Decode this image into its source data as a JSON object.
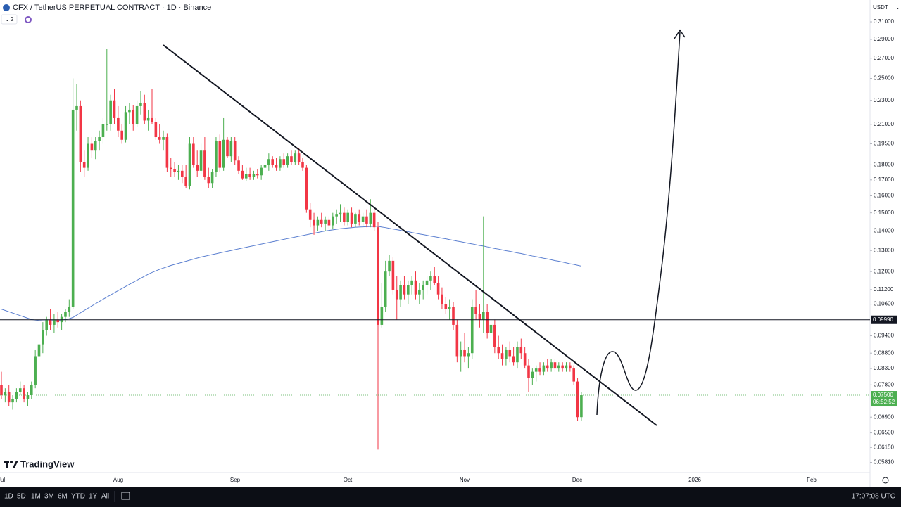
{
  "header": {
    "symbol": "CFX / TetherUS PERPETUAL CONTRACT · 1D · Binance",
    "indicator_count": "2",
    "currency": "USDT"
  },
  "chart_data": {
    "type": "candlestick",
    "log_scale": true,
    "up_color": "#4caf50",
    "down_color": "#f23645",
    "ylim": [
      0.0559,
      0.3368
    ],
    "yticks": [
      {
        "value": 0.31,
        "label": "0.31000"
      },
      {
        "value": 0.29,
        "label": "0.29000"
      },
      {
        "value": 0.27,
        "label": "0.27000"
      },
      {
        "value": 0.25,
        "label": "0.25000"
      },
      {
        "value": 0.23,
        "label": "0.23000"
      },
      {
        "value": 0.21,
        "label": "0.21000"
      },
      {
        "value": 0.195,
        "label": "0.19500"
      },
      {
        "value": 0.18,
        "label": "0.18000"
      },
      {
        "value": 0.17,
        "label": "0.17000"
      },
      {
        "value": 0.16,
        "label": "0.16000"
      },
      {
        "value": 0.15,
        "label": "0.15000"
      },
      {
        "value": 0.14,
        "label": "0.14000"
      },
      {
        "value": 0.13,
        "label": "0.13000"
      },
      {
        "value": 0.12,
        "label": "0.12000"
      },
      {
        "value": 0.112,
        "label": "0.11200"
      },
      {
        "value": 0.106,
        "label": "0.10600"
      },
      {
        "value": 0.094,
        "label": "0.09400"
      },
      {
        "value": 0.088,
        "label": "0.08800"
      },
      {
        "value": 0.083,
        "label": "0.08300"
      },
      {
        "value": 0.078,
        "label": "0.07800"
      },
      {
        "value": 0.069,
        "label": "0.06900"
      },
      {
        "value": 0.065,
        "label": "0.06500"
      },
      {
        "value": 0.0615,
        "label": "0.06150"
      },
      {
        "value": 0.0581,
        "label": "0.05810"
      }
    ],
    "x_labels": [
      "Jul",
      "Aug",
      "Sep",
      "Oct",
      "Nov",
      "Dec",
      "2026",
      "Feb"
    ],
    "hline": {
      "value": 0.0999,
      "label": "0.09990"
    },
    "last": {
      "value": 0.075,
      "label": "0.07500",
      "countdown": "06:52:52"
    },
    "ohlc": [
      [
        0.078,
        0.082,
        0.074,
        0.075
      ],
      [
        0.075,
        0.077,
        0.073,
        0.076
      ],
      [
        0.076,
        0.078,
        0.072,
        0.073
      ],
      [
        0.073,
        0.075,
        0.071,
        0.074
      ],
      [
        0.074,
        0.077,
        0.073,
        0.076
      ],
      [
        0.076,
        0.079,
        0.075,
        0.077
      ],
      [
        0.077,
        0.078,
        0.073,
        0.074
      ],
      [
        0.074,
        0.076,
        0.072,
        0.075
      ],
      [
        0.075,
        0.079,
        0.074,
        0.078
      ],
      [
        0.078,
        0.089,
        0.077,
        0.087
      ],
      [
        0.087,
        0.093,
        0.085,
        0.091
      ],
      [
        0.091,
        0.099,
        0.088,
        0.096
      ],
      [
        0.096,
        0.101,
        0.094,
        0.1
      ],
      [
        0.1,
        0.104,
        0.096,
        0.098
      ],
      [
        0.098,
        0.102,
        0.095,
        0.1
      ],
      [
        0.1,
        0.103,
        0.097,
        0.099
      ],
      [
        0.099,
        0.102,
        0.096,
        0.101
      ],
      [
        0.101,
        0.104,
        0.099,
        0.103
      ],
      [
        0.103,
        0.108,
        0.101,
        0.105
      ],
      [
        0.105,
        0.25,
        0.104,
        0.222
      ],
      [
        0.222,
        0.245,
        0.205,
        0.225
      ],
      [
        0.225,
        0.23,
        0.175,
        0.182
      ],
      [
        0.182,
        0.19,
        0.172,
        0.178
      ],
      [
        0.178,
        0.2,
        0.176,
        0.195
      ],
      [
        0.195,
        0.2,
        0.185,
        0.19
      ],
      [
        0.19,
        0.2,
        0.184,
        0.197
      ],
      [
        0.197,
        0.205,
        0.19,
        0.2
      ],
      [
        0.2,
        0.215,
        0.195,
        0.21
      ],
      [
        0.21,
        0.28,
        0.205,
        0.21
      ],
      [
        0.21,
        0.235,
        0.205,
        0.23
      ],
      [
        0.23,
        0.24,
        0.21,
        0.215
      ],
      [
        0.215,
        0.225,
        0.2,
        0.205
      ],
      [
        0.205,
        0.21,
        0.195,
        0.198
      ],
      [
        0.198,
        0.225,
        0.196,
        0.22
      ],
      [
        0.22,
        0.228,
        0.21,
        0.222
      ],
      [
        0.222,
        0.226,
        0.205,
        0.21
      ],
      [
        0.21,
        0.23,
        0.208,
        0.225
      ],
      [
        0.225,
        0.238,
        0.218,
        0.228
      ],
      [
        0.228,
        0.235,
        0.21,
        0.213
      ],
      [
        0.213,
        0.222,
        0.205,
        0.215
      ],
      [
        0.215,
        0.24,
        0.21,
        0.212
      ],
      [
        0.212,
        0.215,
        0.198,
        0.2
      ],
      [
        0.2,
        0.21,
        0.195,
        0.198
      ],
      [
        0.198,
        0.205,
        0.19,
        0.2
      ],
      [
        0.2,
        0.203,
        0.175,
        0.178
      ],
      [
        0.178,
        0.185,
        0.172,
        0.177
      ],
      [
        0.177,
        0.182,
        0.172,
        0.175
      ],
      [
        0.175,
        0.18,
        0.17,
        0.176
      ],
      [
        0.176,
        0.18,
        0.168,
        0.172
      ],
      [
        0.172,
        0.18,
        0.165,
        0.166
      ],
      [
        0.166,
        0.2,
        0.164,
        0.195
      ],
      [
        0.195,
        0.2,
        0.178,
        0.18
      ],
      [
        0.18,
        0.19,
        0.172,
        0.176
      ],
      [
        0.176,
        0.195,
        0.174,
        0.19
      ],
      [
        0.19,
        0.2,
        0.17,
        0.172
      ],
      [
        0.172,
        0.178,
        0.165,
        0.168
      ],
      [
        0.168,
        0.177,
        0.165,
        0.175
      ],
      [
        0.175,
        0.2,
        0.172,
        0.197
      ],
      [
        0.197,
        0.202,
        0.175,
        0.178
      ],
      [
        0.178,
        0.215,
        0.176,
        0.198
      ],
      [
        0.198,
        0.2,
        0.185,
        0.186
      ],
      [
        0.186,
        0.2,
        0.182,
        0.197
      ],
      [
        0.197,
        0.2,
        0.18,
        0.183
      ],
      [
        0.183,
        0.186,
        0.174,
        0.176
      ],
      [
        0.176,
        0.18,
        0.17,
        0.171
      ],
      [
        0.171,
        0.178,
        0.169,
        0.174
      ],
      [
        0.174,
        0.178,
        0.17,
        0.172
      ],
      [
        0.172,
        0.176,
        0.17,
        0.174
      ],
      [
        0.174,
        0.177,
        0.171,
        0.173
      ],
      [
        0.173,
        0.18,
        0.17,
        0.178
      ],
      [
        0.178,
        0.182,
        0.175,
        0.18
      ],
      [
        0.18,
        0.188,
        0.176,
        0.184
      ],
      [
        0.184,
        0.186,
        0.178,
        0.18
      ],
      [
        0.18,
        0.185,
        0.176,
        0.178
      ],
      [
        0.178,
        0.186,
        0.176,
        0.184
      ],
      [
        0.184,
        0.188,
        0.178,
        0.18
      ],
      [
        0.18,
        0.188,
        0.178,
        0.186
      ],
      [
        0.186,
        0.19,
        0.18,
        0.182
      ],
      [
        0.182,
        0.19,
        0.18,
        0.188
      ],
      [
        0.188,
        0.192,
        0.18,
        0.182
      ],
      [
        0.182,
        0.185,
        0.176,
        0.178
      ],
      [
        0.178,
        0.18,
        0.15,
        0.152
      ],
      [
        0.152,
        0.156,
        0.142,
        0.146
      ],
      [
        0.146,
        0.15,
        0.138,
        0.143
      ],
      [
        0.143,
        0.148,
        0.14,
        0.146
      ],
      [
        0.146,
        0.15,
        0.142,
        0.144
      ],
      [
        0.144,
        0.148,
        0.14,
        0.146
      ],
      [
        0.146,
        0.148,
        0.141,
        0.143
      ],
      [
        0.143,
        0.15,
        0.141,
        0.148
      ],
      [
        0.148,
        0.152,
        0.144,
        0.149
      ],
      [
        0.149,
        0.155,
        0.145,
        0.15
      ],
      [
        0.15,
        0.153,
        0.143,
        0.145
      ],
      [
        0.145,
        0.152,
        0.143,
        0.15
      ],
      [
        0.15,
        0.153,
        0.142,
        0.144
      ],
      [
        0.144,
        0.15,
        0.142,
        0.149
      ],
      [
        0.149,
        0.152,
        0.143,
        0.145
      ],
      [
        0.145,
        0.15,
        0.143,
        0.148
      ],
      [
        0.148,
        0.152,
        0.142,
        0.144
      ],
      [
        0.144,
        0.158,
        0.142,
        0.15
      ],
      [
        0.15,
        0.153,
        0.14,
        0.142
      ],
      [
        0.142,
        0.145,
        0.061,
        0.098
      ],
      [
        0.098,
        0.115,
        0.097,
        0.105
      ],
      [
        0.105,
        0.125,
        0.103,
        0.12
      ],
      [
        0.12,
        0.128,
        0.118,
        0.125
      ],
      [
        0.125,
        0.127,
        0.11,
        0.112
      ],
      [
        0.112,
        0.118,
        0.1,
        0.108
      ],
      [
        0.108,
        0.116,
        0.105,
        0.114
      ],
      [
        0.114,
        0.118,
        0.108,
        0.11
      ],
      [
        0.11,
        0.116,
        0.106,
        0.114
      ],
      [
        0.114,
        0.118,
        0.11,
        0.116
      ],
      [
        0.116,
        0.12,
        0.108,
        0.11
      ],
      [
        0.11,
        0.115,
        0.106,
        0.112
      ],
      [
        0.112,
        0.116,
        0.108,
        0.114
      ],
      [
        0.114,
        0.118,
        0.11,
        0.116
      ],
      [
        0.116,
        0.12,
        0.112,
        0.118
      ],
      [
        0.118,
        0.122,
        0.114,
        0.115
      ],
      [
        0.115,
        0.118,
        0.108,
        0.11
      ],
      [
        0.11,
        0.113,
        0.104,
        0.106
      ],
      [
        0.106,
        0.109,
        0.102,
        0.104
      ],
      [
        0.104,
        0.108,
        0.1,
        0.105
      ],
      [
        0.105,
        0.107,
        0.096,
        0.098
      ],
      [
        0.098,
        0.1,
        0.085,
        0.087
      ],
      [
        0.087,
        0.092,
        0.082,
        0.089
      ],
      [
        0.089,
        0.095,
        0.085,
        0.087
      ],
      [
        0.087,
        0.09,
        0.083,
        0.088
      ],
      [
        0.088,
        0.108,
        0.086,
        0.105
      ],
      [
        0.105,
        0.112,
        0.1,
        0.102
      ],
      [
        0.102,
        0.106,
        0.097,
        0.1
      ],
      [
        0.1,
        0.148,
        0.095,
        0.103
      ],
      [
        0.103,
        0.106,
        0.093,
        0.095
      ],
      [
        0.095,
        0.1,
        0.093,
        0.098
      ],
      [
        0.098,
        0.1,
        0.088,
        0.09
      ],
      [
        0.09,
        0.094,
        0.086,
        0.088
      ],
      [
        0.088,
        0.091,
        0.084,
        0.086
      ],
      [
        0.086,
        0.09,
        0.084,
        0.089
      ],
      [
        0.089,
        0.092,
        0.085,
        0.087
      ],
      [
        0.087,
        0.09,
        0.084,
        0.085
      ],
      [
        0.085,
        0.092,
        0.083,
        0.09
      ],
      [
        0.09,
        0.093,
        0.086,
        0.088
      ],
      [
        0.088,
        0.09,
        0.083,
        0.084
      ],
      [
        0.084,
        0.086,
        0.076,
        0.08
      ],
      [
        0.08,
        0.083,
        0.078,
        0.082
      ],
      [
        0.082,
        0.084,
        0.079,
        0.083
      ],
      [
        0.083,
        0.085,
        0.081,
        0.082
      ],
      [
        0.082,
        0.085,
        0.081,
        0.084
      ],
      [
        0.084,
        0.086,
        0.082,
        0.083
      ],
      [
        0.083,
        0.086,
        0.082,
        0.085
      ],
      [
        0.085,
        0.086,
        0.082,
        0.083
      ],
      [
        0.083,
        0.085,
        0.082,
        0.084
      ],
      [
        0.084,
        0.085,
        0.082,
        0.083
      ],
      [
        0.083,
        0.085,
        0.082,
        0.084
      ],
      [
        0.084,
        0.085,
        0.082,
        0.083
      ],
      [
        0.083,
        0.084,
        0.078,
        0.079
      ],
      [
        0.079,
        0.08,
        0.068,
        0.069
      ],
      [
        0.069,
        0.076,
        0.068,
        0.075
      ]
    ],
    "series": [
      {
        "color": "#5b7fd0",
        "values": [
          0.104,
          0.1035,
          0.103,
          0.1025,
          0.102,
          0.1015,
          0.101,
          0.1005,
          0.1,
          0.0998,
          0.0996,
          0.0995,
          0.0995,
          0.0995,
          0.0996,
          0.0997,
          0.0998,
          0.1,
          0.1003,
          0.1008,
          0.1017,
          0.1026,
          0.1035,
          0.1044,
          0.1053,
          0.1062,
          0.1071,
          0.108,
          0.1089,
          0.1098,
          0.1107,
          0.1116,
          0.1125,
          0.1134,
          0.1143,
          0.1152,
          0.1161,
          0.117,
          0.1179,
          0.1188,
          0.1196,
          0.1203,
          0.121,
          0.1216,
          0.1222,
          0.1228,
          0.1233,
          0.1238,
          0.1243,
          0.1248,
          0.1253,
          0.1258,
          0.1263,
          0.1268,
          0.1272,
          0.1276,
          0.128,
          0.1284,
          0.1288,
          0.1292,
          0.1296,
          0.13,
          0.1304,
          0.1308,
          0.1312,
          0.1316,
          0.132,
          0.1324,
          0.1328,
          0.1332,
          0.1336,
          0.134,
          0.1344,
          0.1348,
          0.1352,
          0.1356,
          0.136,
          0.1364,
          0.1368,
          0.1372,
          0.1376,
          0.138,
          0.1384,
          0.1388,
          0.1392,
          0.1396,
          0.14,
          0.1403,
          0.1406,
          0.1409,
          0.1412,
          0.1414,
          0.1416,
          0.1418,
          0.142,
          0.1421,
          0.1422,
          0.1423,
          0.1424,
          0.1425,
          0.1425,
          0.1421,
          0.1418,
          0.1414,
          0.141,
          0.1407,
          0.1403,
          0.1399,
          0.1396,
          0.1392,
          0.1388,
          0.1384,
          0.1381,
          0.1377,
          0.1373,
          0.137,
          0.1366,
          0.1362,
          0.1359,
          0.1355,
          0.1351,
          0.1347,
          0.1344,
          0.134,
          0.1336,
          0.1333,
          0.1329,
          0.1325,
          0.1322,
          0.1318,
          0.1314,
          0.131,
          0.1307,
          0.1303,
          0.1299,
          0.1296,
          0.1292,
          0.1288,
          0.1285,
          0.1281,
          0.1277,
          0.1273,
          0.127,
          0.1266,
          0.1262,
          0.1259,
          0.1255,
          0.1251,
          0.1248,
          0.1244,
          0.124,
          0.1236,
          0.1233,
          0.1229,
          0.1225
        ]
      }
    ]
  },
  "footer": {
    "logo": "TradingView",
    "ranges": [
      "1D",
      "5D",
      "1M",
      "3M",
      "6M",
      "YTD",
      "1Y",
      "All"
    ],
    "clock": "17:07:08 UTC"
  }
}
